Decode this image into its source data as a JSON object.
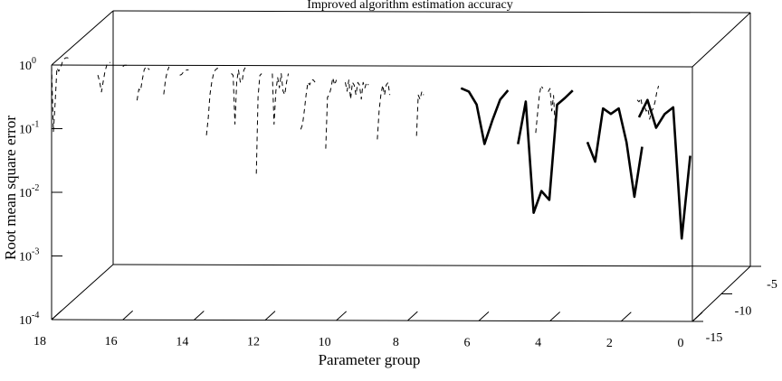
{
  "chart_data": {
    "type": "line",
    "projection": "3d",
    "title": "Improved algorithm estimation accuracy",
    "xlabel": "Parameter group",
    "ylabel": "Root mean square error",
    "zlabel": "",
    "x_ticks": [
      "18",
      "16",
      "14",
      "12",
      "10",
      "8",
      "6",
      "4",
      "2",
      "0"
    ],
    "z_ticks": [
      "-5",
      "-10",
      "-15"
    ],
    "y_ticks": [
      {
        "base": "10",
        "exp": "0"
      },
      {
        "base": "10",
        "exp": "-1"
      },
      {
        "base": "10",
        "exp": "-2"
      },
      {
        "base": "10",
        "exp": "-3"
      },
      {
        "base": "10",
        "exp": "-4"
      }
    ],
    "y_scale": "log",
    "ylim": [
      0.0001,
      1
    ],
    "xlim": [
      18,
      0
    ],
    "zlim": [
      -15,
      -5
    ],
    "grid": false,
    "series": [
      {
        "style": "dashed",
        "color": "#000000",
        "segments": [
          {
            "start": 18.0,
            "step": 0.05,
            "values": [
              0.95,
              0.09,
              0.25,
              0.9,
              0.8,
              0.9,
              1.1,
              1.25,
              1.3,
              1.3,
              1.25
            ]
          },
          {
            "start": 16.7,
            "step": 0.05,
            "values": [
              0.7,
              0.55,
              0.38,
              0.55,
              0.8,
              1.0,
              1.1,
              1.1
            ]
          },
          {
            "start": 16.0,
            "step": 0.05,
            "values": [
              0.95,
              1.0,
              1.0,
              1.0
            ]
          },
          {
            "start": 15.6,
            "step": 0.05,
            "values": [
              0.28,
              0.42,
              0.4,
              0.6,
              0.85,
              0.95,
              0.9,
              0.85
            ]
          },
          {
            "start": 14.85,
            "step": 0.05,
            "values": [
              0.35,
              0.6,
              0.8,
              0.95
            ]
          },
          {
            "start": 14.4,
            "step": 0.05,
            "values": [
              0.7,
              0.72,
              0.78,
              0.83,
              0.85,
              0.85
            ]
          },
          {
            "start": 13.65,
            "step": 0.05,
            "values": [
              0.08,
              0.15,
              0.35,
              0.55,
              0.75,
              0.85,
              0.9,
              0.9
            ]
          },
          {
            "start": 12.95,
            "step": 0.05,
            "values": [
              0.75,
              0.7,
              0.12,
              0.55,
              0.85,
              0.55,
              0.55,
              0.85,
              0.95,
              0.9
            ]
          },
          {
            "start": 12.25,
            "step": 0.05,
            "values": [
              0.02,
              0.32,
              0.7,
              0.75
            ]
          },
          {
            "start": 11.8,
            "step": 0.05,
            "values": [
              0.75,
              0.12,
              0.4,
              0.65,
              0.45,
              0.75,
              0.4,
              0.35,
              0.55,
              0.75
            ]
          },
          {
            "start": 11.0,
            "step": 0.05,
            "values": [
              0.1,
              0.12,
              0.2,
              0.35,
              0.55,
              0.5,
              0.6,
              0.6,
              0.55
            ]
          },
          {
            "start": 10.3,
            "step": 0.05,
            "values": [
              0.05,
              0.32,
              0.35,
              0.45,
              0.65,
              0.5,
              0.6
            ]
          },
          {
            "start": 9.75,
            "step": 0.05,
            "values": [
              0.55,
              0.4,
              0.6,
              0.3,
              0.55,
              0.5,
              0.35,
              0.55,
              0.5,
              0.3,
              0.55,
              0.45,
              0.55,
              0.5
            ]
          },
          {
            "start": 8.85,
            "step": 0.05,
            "values": [
              0.07,
              0.2,
              0.35,
              0.5,
              0.35,
              0.5,
              0.55,
              0.35
            ]
          },
          {
            "start": 7.75,
            "step": 0.05,
            "values": [
              0.08,
              0.35,
              0.3,
              0.4,
              0.35
            ]
          },
          {
            "start": 4.4,
            "step": 0.05,
            "values": [
              0.09,
              0.18,
              0.35,
              0.5,
              0.45
            ]
          },
          {
            "start": 4.05,
            "step": 0.05,
            "values": [
              0.4,
              0.45,
              0.2,
              0.35,
              0.1
            ]
          },
          {
            "start": 1.55,
            "step": 0.05,
            "values": [
              0.3,
              0.28,
              0.32,
              0.22,
              0.25,
              0.2,
              0.22,
              0.15,
              0.2,
              0.22,
              0.28,
              0.4,
              0.5
            ]
          }
        ]
      },
      {
        "style": "solid",
        "color": "#000000",
        "segments": [
          {
            "start": 6.5,
            "step": 0.22,
            "values": [
              0.45,
              0.4,
              0.25,
              0.06,
              0.14,
              0.3,
              0.42
            ]
          },
          {
            "start": 4.9,
            "step": 0.22,
            "values": [
              0.06,
              0.28,
              0.005,
              0.011,
              0.008,
              0.25,
              0.32,
              0.42
            ]
          },
          {
            "start": 2.95,
            "step": 0.22,
            "values": [
              0.065,
              0.032,
              0.22,
              0.18,
              0.22,
              0.065,
              0.009,
              0.055
            ]
          },
          {
            "start": 1.5,
            "step": 0.24,
            "values": [
              0.16,
              0.3,
              0.11,
              0.18,
              0.23,
              0.002,
              0.04
            ]
          }
        ]
      }
    ]
  }
}
